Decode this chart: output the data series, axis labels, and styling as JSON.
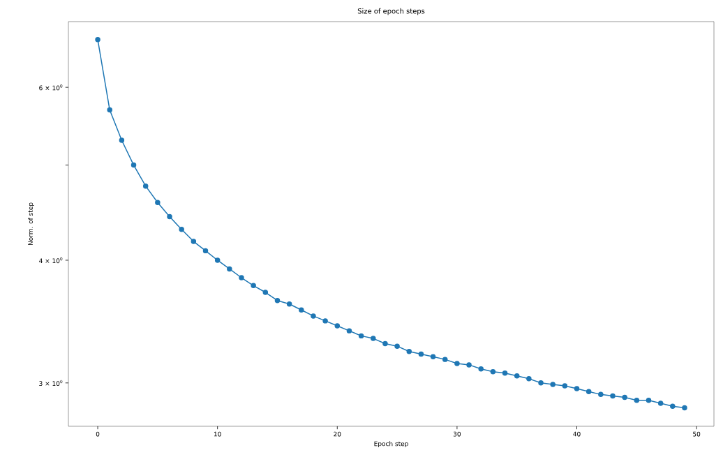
{
  "chart_data": {
    "type": "line",
    "title": "Size of epoch steps",
    "xlabel": "Epoch step",
    "ylabel": "Norm. of step",
    "x": [
      0,
      1,
      2,
      3,
      4,
      5,
      6,
      7,
      8,
      9,
      10,
      11,
      12,
      13,
      14,
      15,
      16,
      17,
      18,
      19,
      20,
      21,
      22,
      23,
      24,
      25,
      26,
      27,
      28,
      29,
      30,
      31,
      32,
      33,
      34,
      35,
      36,
      37,
      38,
      39,
      40,
      41,
      42,
      43,
      44,
      45,
      46,
      47,
      48,
      49
    ],
    "series": [
      {
        "color": "#1f77b4",
        "values": [
          6.71,
          5.69,
          5.3,
          5.0,
          4.76,
          4.58,
          4.43,
          4.3,
          4.18,
          4.09,
          4.0,
          3.92,
          3.84,
          3.77,
          3.71,
          3.64,
          3.61,
          3.56,
          3.51,
          3.47,
          3.43,
          3.39,
          3.35,
          3.33,
          3.29,
          3.27,
          3.23,
          3.21,
          3.19,
          3.17,
          3.14,
          3.13,
          3.1,
          3.08,
          3.07,
          3.05,
          3.03,
          3.0,
          2.99,
          2.98,
          2.96,
          2.94,
          2.92,
          2.91,
          2.9,
          2.88,
          2.88,
          2.86,
          2.84,
          2.83
        ]
      }
    ],
    "log": "y",
    "marker": "circle",
    "line_style": "solid",
    "xlim": [
      -2.45,
      51.45
    ],
    "ylim": [
      2.71,
      7.0
    ],
    "xticks": [
      0,
      10,
      20,
      30,
      40,
      50
    ],
    "yticks": [
      {
        "value": 3,
        "label": "3 × 10$^{0}$"
      },
      {
        "value": 4,
        "label": "4 × 10$^{0}$"
      },
      {
        "value": 5,
        "label": null
      },
      {
        "value": 6,
        "label": "6 × 10$^{0}$"
      }
    ]
  }
}
